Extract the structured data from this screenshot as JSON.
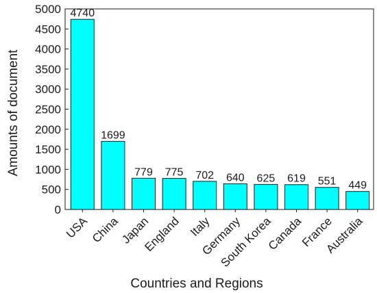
{
  "chart_data": {
    "type": "bar",
    "xlabel": "Countries and Regions",
    "ylabel": "Amounts of document",
    "categories": [
      "USA",
      "China",
      "Japan",
      "England",
      "Italy",
      "Germany",
      "South Korea",
      "Canada",
      "France",
      "Australia"
    ],
    "values": [
      4740,
      1699,
      779,
      775,
      702,
      640,
      625,
      619,
      551,
      449
    ],
    "data_labels": [
      "4740",
      "1699",
      "779",
      "775",
      "702",
      "640",
      "625",
      "619",
      "551",
      "449"
    ],
    "ylim": [
      0,
      5000
    ],
    "yticks": [
      0,
      500,
      1000,
      1500,
      2000,
      2500,
      3000,
      3500,
      4000,
      4500,
      5000
    ],
    "ytick_labels": [
      "0",
      "500",
      "1000",
      "1500",
      "2000",
      "2500",
      "3000",
      "3500",
      "4000",
      "4500",
      "5000"
    ],
    "bar_color": "#00ffff",
    "bar_edge_color": "#1a1a1a",
    "grid": false,
    "legend": "none"
  }
}
